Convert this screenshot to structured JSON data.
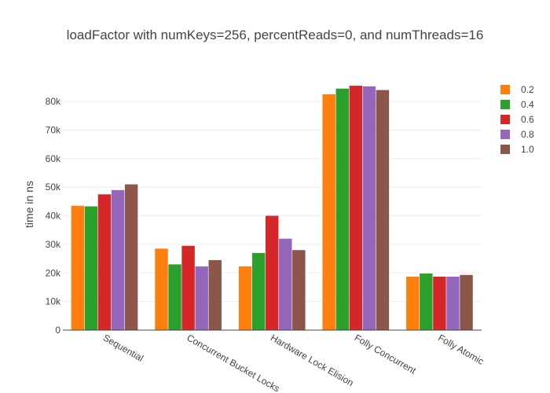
{
  "chart_data": {
    "type": "bar",
    "title": "loadFactor with numKeys=256, percentReads=0, and numThreads=16",
    "xlabel": "",
    "ylabel": "time in ns",
    "ylim": [
      0,
      88000
    ],
    "yticks": [
      0,
      10000,
      20000,
      30000,
      40000,
      50000,
      60000,
      70000,
      80000
    ],
    "ytick_labels": [
      "0",
      "10k",
      "20k",
      "30k",
      "40k",
      "50k",
      "60k",
      "70k",
      "80k"
    ],
    "grid": true,
    "legend_position": "top-right",
    "categories": [
      "Sequential",
      "Concurrent Bucket Locks",
      "Hardware Lock Elision",
      "Folly Concurrent",
      "Folly Atomic"
    ],
    "series": [
      {
        "name": "0.2",
        "color": "#ff7f0e",
        "values": [
          43500,
          28500,
          22300,
          82500,
          18700
        ]
      },
      {
        "name": "0.4",
        "color": "#2ca02c",
        "values": [
          43300,
          23000,
          27000,
          84500,
          19800
        ]
      },
      {
        "name": "0.6",
        "color": "#d62728",
        "values": [
          47500,
          29500,
          40000,
          85500,
          18700
        ]
      },
      {
        "name": "0.8",
        "color": "#9467bd",
        "values": [
          49000,
          22300,
          32000,
          85300,
          18700
        ]
      },
      {
        "name": "1.0",
        "color": "#8c564b",
        "values": [
          51000,
          24500,
          28000,
          84000,
          19300
        ]
      }
    ]
  }
}
